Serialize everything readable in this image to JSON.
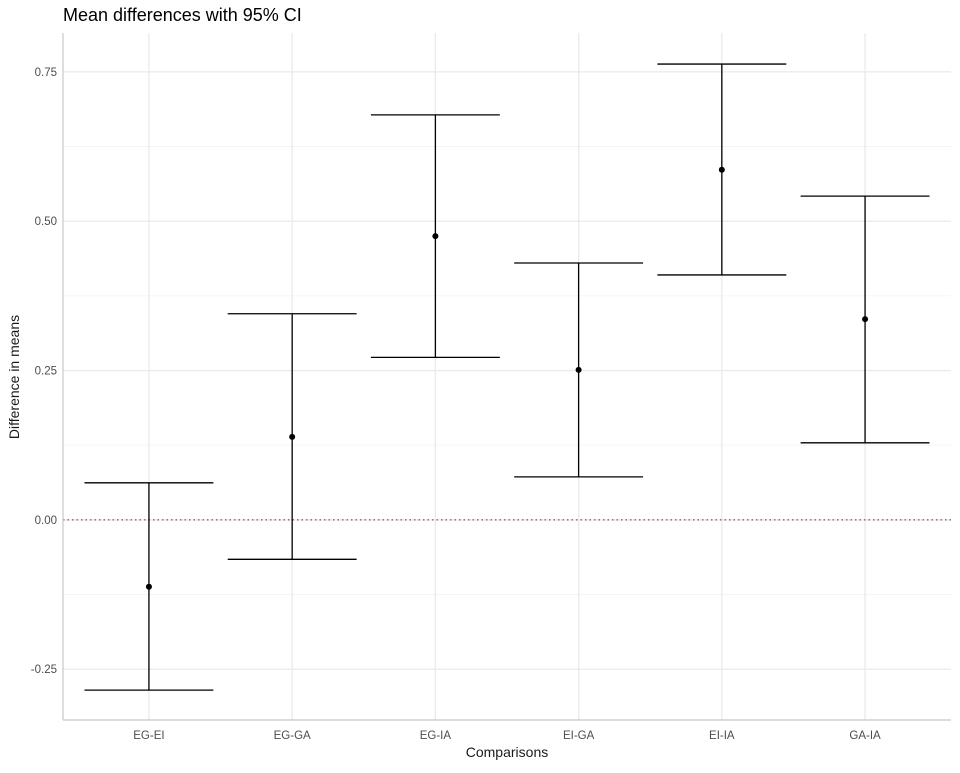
{
  "chart_data": {
    "type": "errorbar",
    "title": "Mean differences with 95% CI",
    "xlabel": "Comparisons",
    "ylabel": "Difference in means",
    "categories": [
      "EG-EI",
      "EG-GA",
      "EG-IA",
      "EI-GA",
      "EI-IA",
      "GA-IA"
    ],
    "estimate": [
      -0.112,
      0.139,
      0.475,
      0.251,
      0.586,
      0.336
    ],
    "lower": [
      -0.285,
      -0.066,
      0.272,
      0.072,
      0.41,
      0.129
    ],
    "upper": [
      0.062,
      0.345,
      0.678,
      0.43,
      0.763,
      0.542
    ],
    "ylim": [
      -0.335,
      0.815
    ],
    "yticks": [
      -0.25,
      0,
      0.25,
      0.5,
      0.75
    ],
    "ytick_labels": [
      "-0.25",
      "0.00",
      "0.25",
      "0.50",
      "0.75"
    ],
    "reference_line": 0,
    "reference_line_color": "#8b1a3a",
    "grid": true,
    "legend": "none"
  }
}
